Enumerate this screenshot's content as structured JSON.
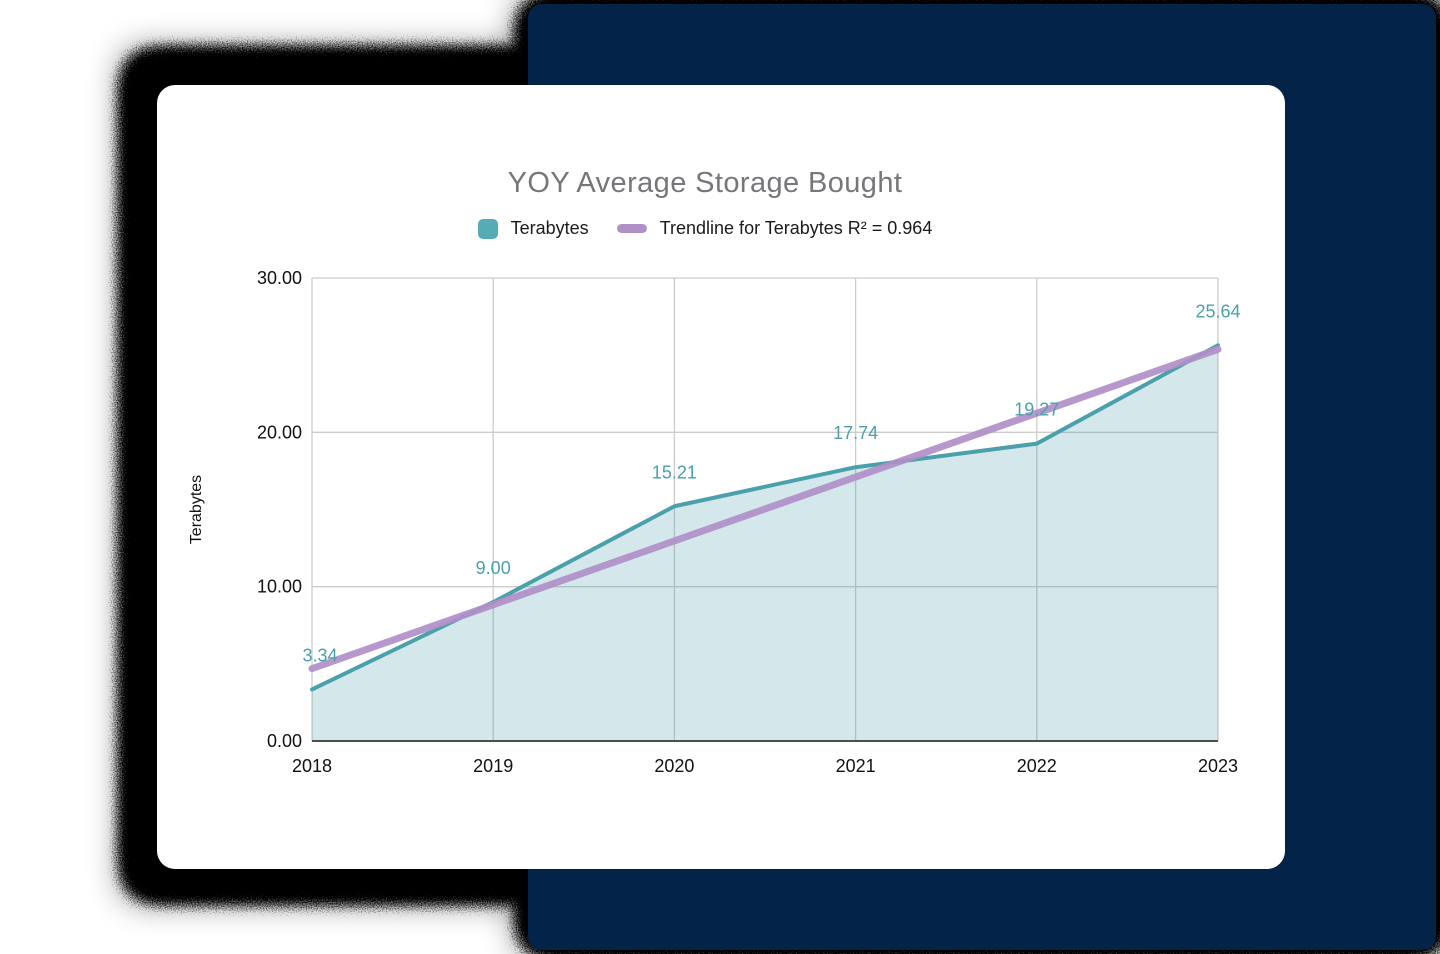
{
  "page": {
    "background_color": "#ffffff"
  },
  "panel": {
    "color": "#042349"
  },
  "card": {
    "background_color": "#ffffff"
  },
  "chart_data": {
    "type": "area",
    "title": "YOY Average Storage Bought",
    "categories": [
      "2018",
      "2019",
      "2020",
      "2021",
      "2022",
      "2023"
    ],
    "series": [
      {
        "name": "Terabytes",
        "values": [
          3.34,
          9.0,
          15.21,
          17.74,
          19.27,
          25.64
        ],
        "point_labels": [
          "3.34",
          "9.00",
          "15.21",
          "17.74",
          "19.27",
          "25.64"
        ],
        "line_color": "#4aa0ab",
        "fill_color": "rgba(74,160,171,0.24)",
        "label_color": "#4aa0ab",
        "swatch_color": "#57abb5"
      }
    ],
    "trendline": {
      "label": "Trendline for Terabytes R² = 0.964",
      "r2": 0.964,
      "start_value": 4.69,
      "end_value": 25.38,
      "color": "#b190c8"
    },
    "xlabel": "",
    "ylabel": "Terabytes",
    "ylim": [
      0,
      30
    ],
    "yticks": [
      {
        "value": 0,
        "label": "0.00"
      },
      {
        "value": 10,
        "label": "10.00"
      },
      {
        "value": 20,
        "label": "20.00"
      },
      {
        "value": 30,
        "label": "30.00"
      }
    ],
    "grid": true,
    "legend_position": "top",
    "axis_text_color": "#111111",
    "grid_color": "#cccccc",
    "axis_line_color": "#4d4d4d",
    "title_color": "#76777a",
    "legend_text_color": "#1b1b1b"
  }
}
